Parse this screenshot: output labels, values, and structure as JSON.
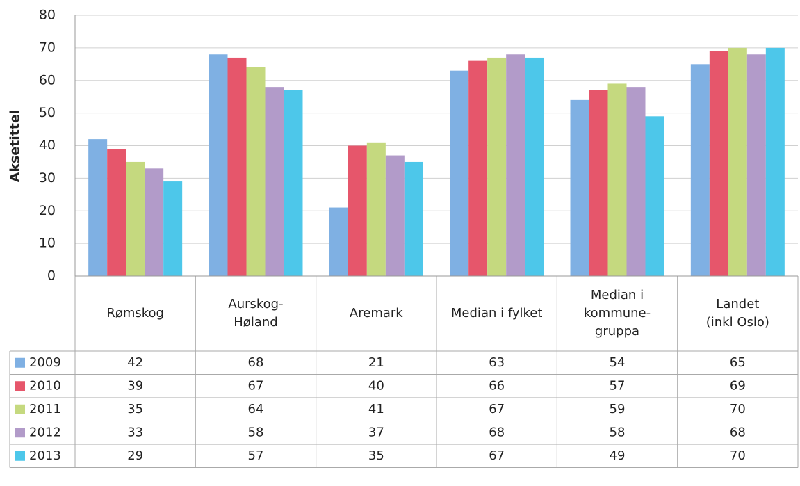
{
  "chart_data": {
    "type": "bar",
    "y_label": "Aksetittel",
    "categories": [
      "Rømskog",
      "Aurskog-\nHøland",
      "Aremark",
      "Median i fylket",
      "Median i\nkommune-\ngruppa",
      "Landet\n(inkl Oslo)"
    ],
    "series": [
      {
        "name": "2009",
        "color": "#7fb0e3",
        "values": [
          42,
          68,
          21,
          63,
          54,
          65
        ]
      },
      {
        "name": "2010",
        "color": "#e6566b",
        "values": [
          39,
          67,
          40,
          66,
          57,
          69
        ]
      },
      {
        "name": "2011",
        "color": "#c5d97f",
        "values": [
          35,
          64,
          41,
          67,
          59,
          70
        ]
      },
      {
        "name": "2012",
        "color": "#b29bc9",
        "values": [
          33,
          58,
          37,
          68,
          58,
          68
        ]
      },
      {
        "name": "2013",
        "color": "#4dc7ea",
        "values": [
          29,
          57,
          35,
          67,
          49,
          70
        ]
      }
    ],
    "ylim": [
      0,
      80
    ],
    "yticks": [
      0,
      10,
      20,
      30,
      40,
      50,
      60,
      70,
      80
    ],
    "grid": true
  }
}
